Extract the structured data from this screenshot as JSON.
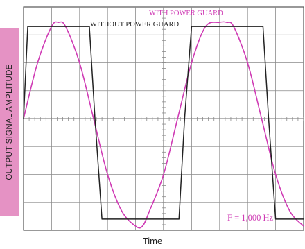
{
  "colors": {
    "with_power_guard": "#cf3ab4",
    "without_power_guard": "#222222",
    "grid": "#8a8a8a",
    "ylabel_bg": "#e592c4"
  },
  "chart_data": {
    "type": "line",
    "xlabel": "Time",
    "ylabel": "OUTPUT SIGNAL AMPLITUDE",
    "annotations": {
      "with": "WITH POWER GUARD",
      "without": "WITHOUT POWER GUARD",
      "frequency": "F = 1,000 Hz"
    },
    "grid": true,
    "xlim": [
      0,
      10
    ],
    "ylim": [
      -4,
      4
    ],
    "series": [
      {
        "name": "WITH POWER GUARD",
        "x": [
          0,
          0.5,
          1.0,
          1.25,
          1.5,
          2.0,
          2.5,
          3.0,
          3.5,
          4.0,
          4.25,
          4.5,
          5.0,
          5.5,
          6.0,
          6.5,
          7.0,
          7.25,
          7.5,
          8.0,
          8.5,
          9.0,
          9.5,
          10.0
        ],
        "y": [
          0,
          2.0,
          3.3,
          3.45,
          3.3,
          2.0,
          0,
          -2.0,
          -3.3,
          -3.85,
          -3.85,
          -3.3,
          -2.0,
          0,
          2.0,
          3.3,
          3.45,
          3.45,
          3.3,
          2.0,
          0,
          -2.0,
          -3.3,
          -3.85
        ]
      },
      {
        "name": "WITHOUT POWER GUARD",
        "x": [
          0,
          0.15,
          2.35,
          2.55,
          2.8,
          3.35,
          5.55,
          5.75,
          6.0,
          6.5,
          8.55,
          8.75,
          9.0,
          9.6,
          10.0
        ],
        "y": [
          0,
          3.3,
          3.3,
          0,
          -3.6,
          -3.6,
          -3.6,
          0,
          3.3,
          3.3,
          3.3,
          0,
          -3.6,
          -3.6,
          -3.6
        ]
      }
    ]
  }
}
